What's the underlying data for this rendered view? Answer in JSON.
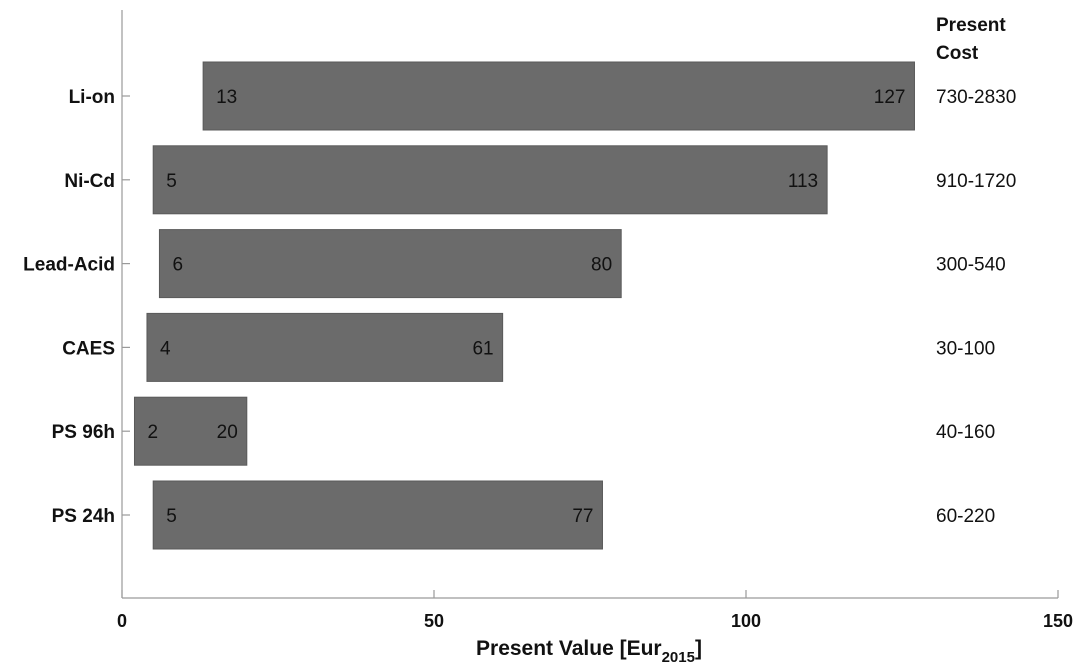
{
  "chart_data": {
    "type": "bar",
    "orientation": "horizontal",
    "categories": [
      "Li-on",
      "Ni-Cd",
      "Lead-Acid",
      "CAES",
      "PS 96h",
      "PS 24h"
    ],
    "ranges": [
      {
        "category": "Li-on",
        "low": 13,
        "high": 127,
        "present_cost": "730-2830"
      },
      {
        "category": "Ni-Cd",
        "low": 5,
        "high": 113,
        "present_cost": "910-1720"
      },
      {
        "category": "Lead-Acid",
        "low": 6,
        "high": 80,
        "present_cost": "300-540"
      },
      {
        "category": "CAES",
        "low": 4,
        "high": 61,
        "present_cost": "30-100"
      },
      {
        "category": "PS 96h",
        "low": 2,
        "high": 20,
        "present_cost": "40-160"
      },
      {
        "category": "PS 24h",
        "low": 5,
        "high": 77,
        "present_cost": "60-220"
      }
    ],
    "low_labels": [
      "13",
      "5",
      "6",
      "4",
      "2",
      "5"
    ],
    "high_labels": [
      "127",
      "113",
      "80",
      "61",
      "20",
      "77"
    ],
    "right_header": [
      "Present",
      "Cost"
    ],
    "xlabel_main": "Present Value [Eur",
    "xlabel_sub": "2015",
    "xlabel_end": "]",
    "xlim": [
      0,
      150
    ],
    "xticks": [
      0,
      50,
      100,
      150
    ],
    "xtick_labels": [
      "0",
      "50",
      "100",
      "150"
    ],
    "bar_color": "#6b6b6b",
    "grid": false
  }
}
